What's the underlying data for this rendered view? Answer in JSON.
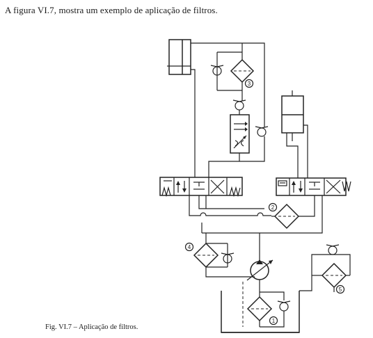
{
  "intro_text": "A figura VI.7, mostra um exemplo de aplicação de filtros.",
  "caption": "Fig. VI.7 – Aplicação de filtros.",
  "filter_labels": [
    "1",
    "2",
    "3",
    "4",
    "5"
  ]
}
